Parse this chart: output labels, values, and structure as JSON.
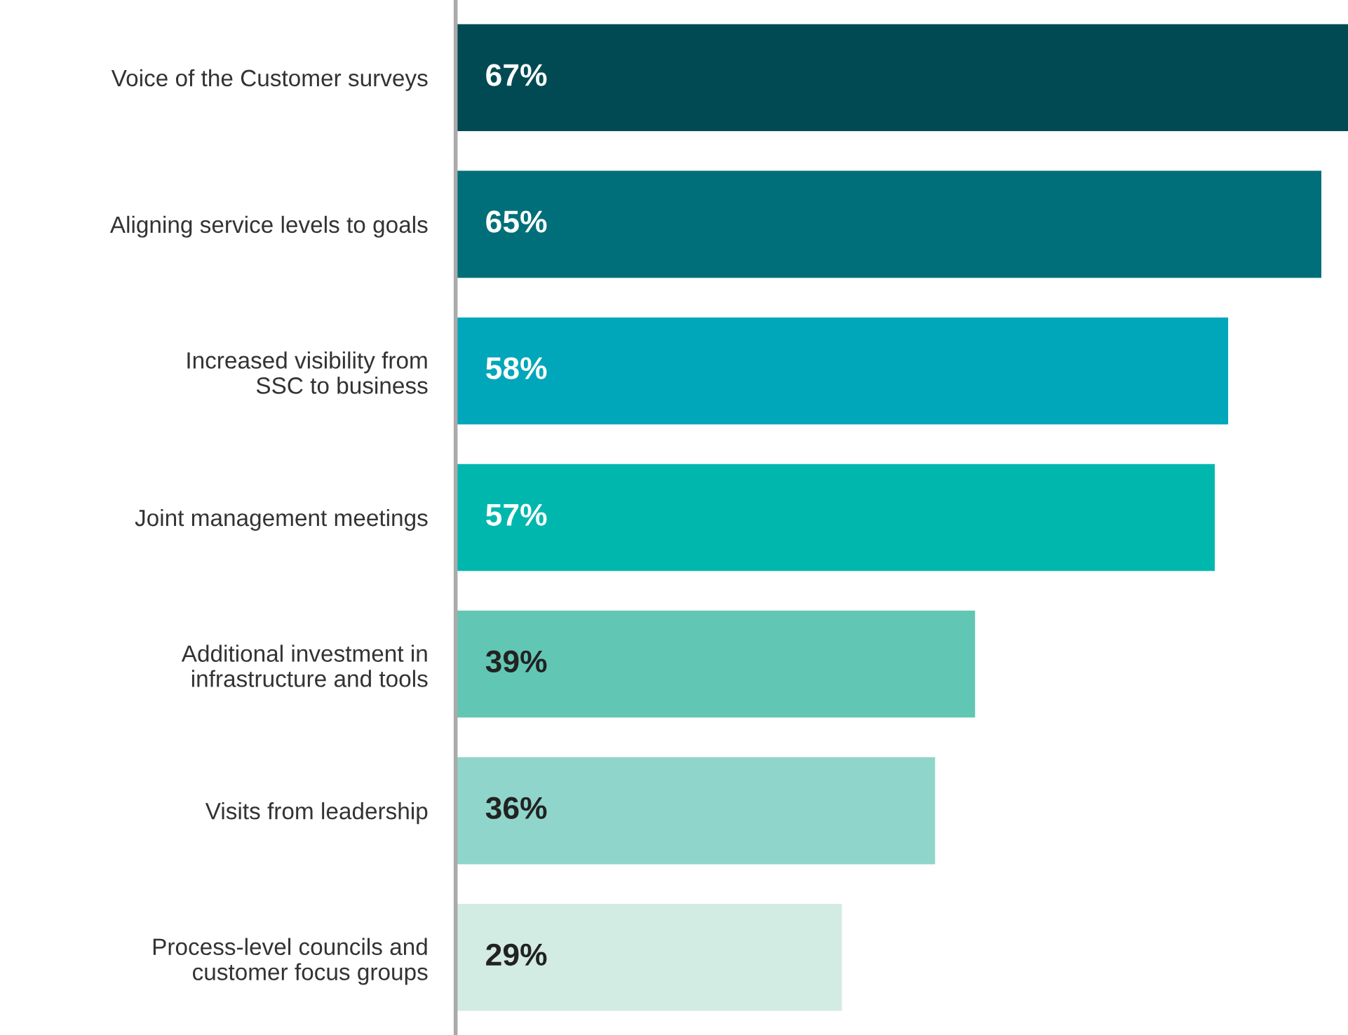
{
  "chart_data": {
    "type": "bar",
    "orientation": "horizontal",
    "categories": [
      "Voice of the Customer surveys",
      "Aligning service levels to goals",
      "Increased visibility from\nSSC to business",
      "Joint management meetings",
      "Additional investment in\ninfrastructure and tools",
      "Visits from leadership",
      "Process-level councils and\ncustomer focus groups"
    ],
    "values": [
      67,
      65,
      58,
      57,
      39,
      36,
      29
    ],
    "value_labels": [
      "67%",
      "65%",
      "58%",
      "57%",
      "39%",
      "36%",
      "29%"
    ],
    "colors": [
      "#014a53",
      "#006f79",
      "#00a6b9",
      "#00b7ae",
      "#62c6b4",
      "#8fd5cb",
      "#d2ebe3"
    ],
    "grid": false,
    "legend": false
  }
}
